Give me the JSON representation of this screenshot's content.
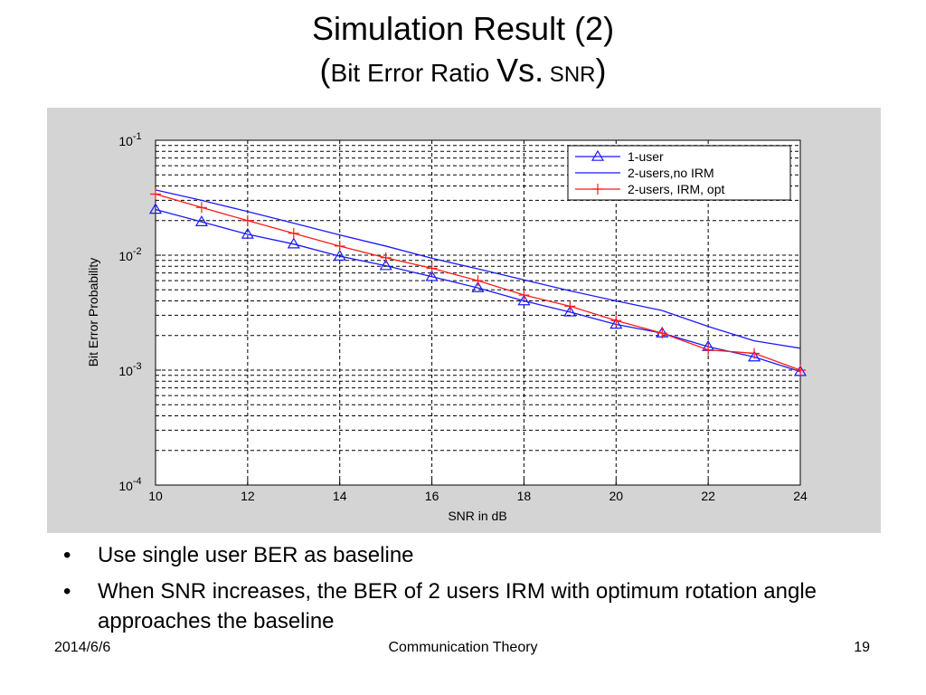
{
  "slide": {
    "title": "Simulation Result (2)",
    "subtitle_open": "(",
    "subtitle_part1": "Bit Error Ratio ",
    "subtitle_vs": "Vs.",
    "subtitle_part2": " SNR",
    "subtitle_close": ")"
  },
  "bullets": [
    "Use single user BER as baseline",
    "When SNR increases, the BER of 2 users IRM with optimum rotation angle approaches the baseline"
  ],
  "footer": {
    "date": "2014/6/6",
    "center": "Communication Theory",
    "page": "19"
  },
  "colors": {
    "figure_bg": "#d4d4d4",
    "plot_bg": "#ffffff",
    "series_blue": "#1a1aff",
    "series_red": "#ff1a1a"
  },
  "chart_data": {
    "type": "line",
    "xlabel": "SNR in dB",
    "ylabel": "Bit Error Probability",
    "xlim": [
      10,
      24
    ],
    "ylim": [
      0.0001,
      0.1
    ],
    "yscale": "log",
    "grid": true,
    "legend_position": "top-right",
    "x_ticks": [
      "10",
      "12",
      "14",
      "16",
      "18",
      "20",
      "22",
      "24"
    ],
    "y_ticks": [
      {
        "value": 0.1,
        "base": "10",
        "exp": "-1"
      },
      {
        "value": 0.01,
        "base": "10",
        "exp": "-2"
      },
      {
        "value": 0.001,
        "base": "10",
        "exp": "-3"
      },
      {
        "value": 0.0001,
        "base": "10",
        "exp": "-4"
      }
    ],
    "series": [
      {
        "name": "1-user",
        "color": "#1a1aff",
        "marker": "triangle",
        "x": [
          10,
          11,
          12,
          13,
          14,
          15,
          16,
          17,
          18,
          19,
          20,
          21,
          22,
          23,
          24
        ],
        "y": [
          0.025,
          0.0195,
          0.0152,
          0.0125,
          0.0098,
          0.0081,
          0.0065,
          0.0052,
          0.004,
          0.0032,
          0.0025,
          0.0021,
          0.0016,
          0.0013,
          0.00097
        ]
      },
      {
        "name": "2-users,no IRM",
        "color": "#1a1aff",
        "marker": "none",
        "x": [
          10,
          11,
          12,
          13,
          14,
          15,
          16,
          17,
          18,
          19,
          20,
          21,
          22,
          23,
          24
        ],
        "y": [
          0.037,
          0.03,
          0.024,
          0.019,
          0.015,
          0.012,
          0.0094,
          0.0076,
          0.0061,
          0.0049,
          0.004,
          0.0033,
          0.0024,
          0.0018,
          0.00155
        ]
      },
      {
        "name": "2-users, IRM, opt",
        "color": "#ff1a1a",
        "marker": "plus",
        "x": [
          10,
          11,
          12,
          13,
          14,
          15,
          16,
          17,
          18,
          19,
          20,
          21,
          22,
          23,
          24
        ],
        "y": [
          0.034,
          0.026,
          0.02,
          0.0155,
          0.012,
          0.0095,
          0.0077,
          0.006,
          0.0045,
          0.0036,
          0.0027,
          0.0021,
          0.0015,
          0.0014,
          0.001
        ]
      }
    ]
  }
}
